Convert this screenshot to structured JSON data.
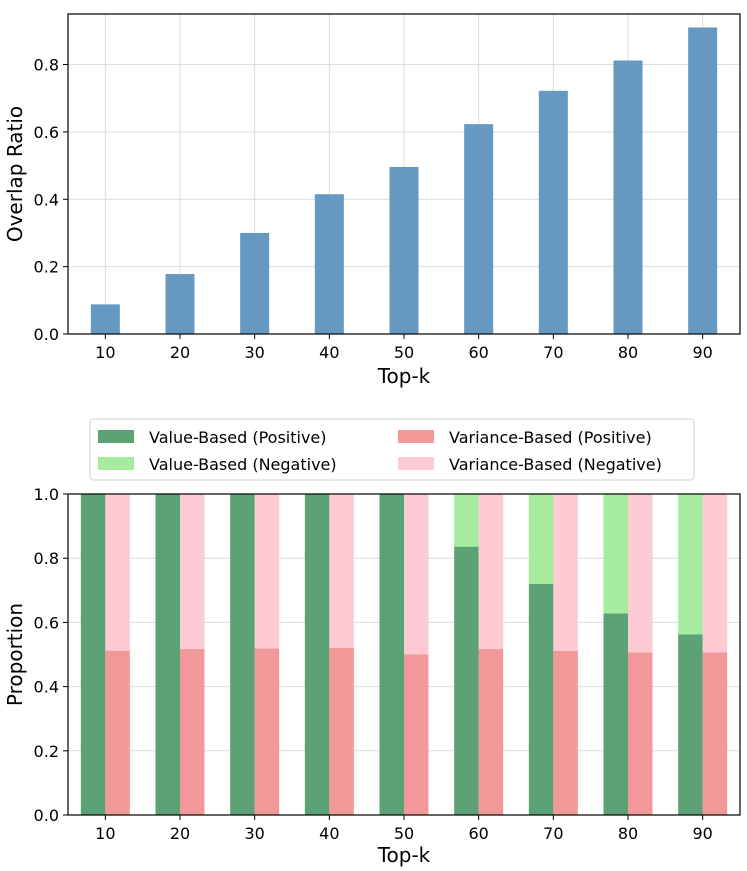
{
  "chart_data": [
    {
      "type": "bar",
      "title": "",
      "xlabel": "Top-k",
      "ylabel": "Overlap Ratio",
      "categories": [
        "10",
        "20",
        "30",
        "40",
        "50",
        "60",
        "70",
        "80",
        "90"
      ],
      "values": [
        0.088,
        0.178,
        0.3,
        0.415,
        0.496,
        0.623,
        0.722,
        0.812,
        0.91
      ],
      "ylim": [
        0,
        0.95
      ],
      "yticks": [
        "0.0",
        "0.2",
        "0.4",
        "0.6",
        "0.8"
      ],
      "grid": true,
      "colors": {
        "bar": "#6699c2"
      }
    },
    {
      "type": "bar",
      "title": "",
      "xlabel": "Top-k",
      "ylabel": "Proportion",
      "categories": [
        "10",
        "20",
        "30",
        "40",
        "50",
        "60",
        "70",
        "80",
        "90"
      ],
      "ylim": [
        0,
        1.0
      ],
      "yticks": [
        "0.0",
        "0.2",
        "0.4",
        "0.6",
        "0.8",
        "1.0"
      ],
      "grid": true,
      "legend_position": "top",
      "series": [
        {
          "name": "Value-Based (Positive)",
          "group": "value",
          "stack": "bottom",
          "color": "#5ca275",
          "values": [
            1.0,
            1.0,
            1.0,
            1.0,
            1.0,
            0.836,
            0.72,
            0.628,
            0.563
          ]
        },
        {
          "name": "Value-Based (Negative)",
          "group": "value",
          "stack": "top",
          "color": "#a6ec9e",
          "values": [
            0.0,
            0.0,
            0.0,
            0.0,
            0.0,
            0.164,
            0.28,
            0.372,
            0.437
          ]
        },
        {
          "name": "Variance-Based (Positive)",
          "group": "variance",
          "stack": "bottom",
          "color": "#f19999",
          "values": [
            0.512,
            0.517,
            0.519,
            0.521,
            0.5,
            0.517,
            0.511,
            0.507,
            0.507
          ]
        },
        {
          "name": "Variance-Based (Negative)",
          "group": "variance",
          "stack": "top",
          "color": "#fecad3",
          "values": [
            0.488,
            0.483,
            0.481,
            0.479,
            0.5,
            0.483,
            0.489,
            0.493,
            0.493
          ]
        }
      ]
    }
  ]
}
